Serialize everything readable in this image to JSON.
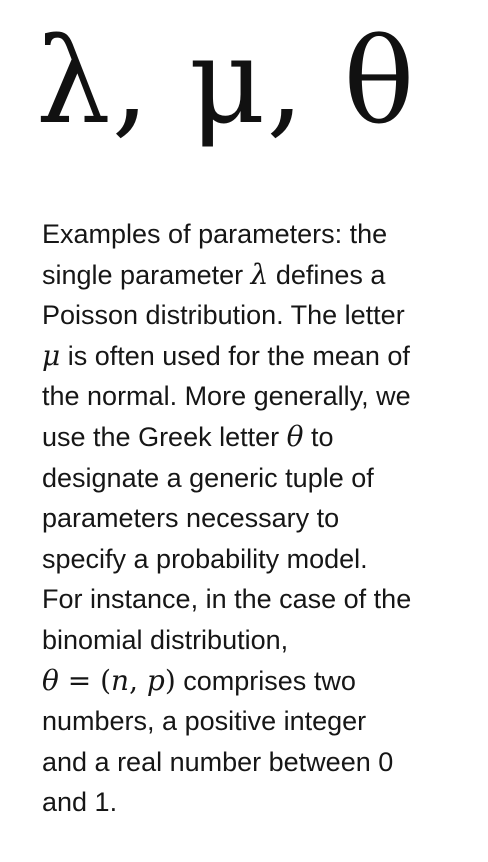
{
  "headline": {
    "symbols": "λ, μ, θ"
  },
  "paragraph": {
    "term": "Examples of parameters",
    "lines": [
      {
        "before": ": the"
      },
      {
        "before": "single parameter ",
        "math": "λ",
        "after": " defines a"
      },
      {
        "before": "Poisson distribution. The letter"
      },
      {
        "math": "μ",
        "after": " is often used for the mean of"
      },
      {
        "before": "the normal. More generally, we"
      },
      {
        "before": "use the Greek letter ",
        "math": "θ",
        "after": " to"
      },
      {
        "before": "designate a generic tuple of"
      },
      {
        "before": "parameters necessary to"
      },
      {
        "before": "specify a probability model."
      },
      {
        "before": "For instance, in the case of the"
      },
      {
        "before": "binomial distribution,"
      },
      {
        "math": "θ",
        "eq": " = (",
        "math2": "n",
        "comma": ", ",
        "math3": "p",
        "close": ")",
        "after": " comprises two"
      },
      {
        "before": "numbers, a positive integer"
      },
      {
        "before": "and a real number between 0"
      },
      {
        "before": "and 1."
      }
    ]
  }
}
